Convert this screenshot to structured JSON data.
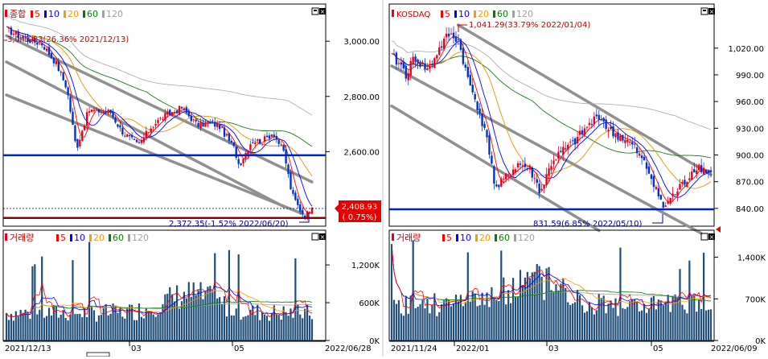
{
  "theme": {
    "background": "#ffffff",
    "frame": "#000000",
    "up_color": "#e8001c",
    "down_color": "#0033cc",
    "volume_color": "#1f4e79",
    "support_line": "#0022cc",
    "alert_line": "#8b0000",
    "channel_line": "#909090",
    "label_badge": "#e60000"
  },
  "legend_items": [
    {
      "label": "5",
      "color": "#ff0000"
    },
    {
      "label": "10",
      "color": "#0000ff"
    },
    {
      "label": "20",
      "color": "#ff9900"
    },
    {
      "label": "60",
      "color": "#008000"
    },
    {
      "label": "120",
      "color": "#a0a0a0"
    }
  ],
  "panels": {
    "left": {
      "title": "종합",
      "volume_title": "거래량",
      "price_ticks": [
        "3,000.00",
        "2,800.00",
        "2,600.00"
      ],
      "volume_ticks": [
        "1,200K",
        "600K",
        "0K"
      ],
      "date_labels": [
        "2021/12/13",
        "03",
        "05",
        "2022/06/28"
      ],
      "high_annotation": "3,043.83(26.36% 2021/12/13)",
      "low_annotation": "2,372.35(-1.52% 2022/06/20)",
      "current_price": "2,408.93",
      "current_change": "( 0.75%)"
    },
    "right": {
      "title": "KOSDAQ",
      "volume_title": "거래량",
      "price_ticks": [
        "1,020.00",
        "990.00",
        "960.00",
        "930.00",
        "900.00",
        "870.00",
        "840.00"
      ],
      "volume_ticks": [
        "1,400K",
        "700K",
        "0K"
      ],
      "date_labels": [
        "2021/11/24",
        "2022/01",
        "03",
        "05",
        "2022/06/09"
      ],
      "high_annotation": "1,041.29(33.79% 2022/01/04)",
      "low_annotation": "831.59(6.85% 2022/05/10)"
    }
  },
  "chart_data": [
    {
      "type": "candlestick",
      "title": "종합",
      "x_range": [
        "2021/12/13",
        "2022/06/28"
      ],
      "ylim": [
        2330,
        3120
      ],
      "y_ticks": [
        2600,
        2800,
        3000
      ],
      "series_legend": [
        "5",
        "10",
        "20",
        "60",
        "120"
      ],
      "close_path": [
        [
          "2021/12/13",
          3043
        ],
        [
          "2021/12/24",
          3010
        ],
        [
          "2022/01/05",
          2990
        ],
        [
          "2022/01/14",
          2920
        ],
        [
          "2022/01/21",
          2830
        ],
        [
          "2022/01/27",
          2610
        ],
        [
          "2022/02/04",
          2750
        ],
        [
          "2022/02/11",
          2747
        ],
        [
          "2022/02/18",
          2744
        ],
        [
          "2022/02/25",
          2676
        ],
        [
          "2022/03/08",
          2622
        ],
        [
          "2022/03/17",
          2695
        ],
        [
          "2022/03/25",
          2729
        ],
        [
          "2022/04/05",
          2759
        ],
        [
          "2022/04/15",
          2696
        ],
        [
          "2022/04/22",
          2704
        ],
        [
          "2022/04/29",
          2695
        ],
        [
          "2022/05/09",
          2610
        ],
        [
          "2022/05/12",
          2550
        ],
        [
          "2022/05/20",
          2639
        ],
        [
          "2022/05/27",
          2638
        ],
        [
          "2022/06/03",
          2670
        ],
        [
          "2022/06/10",
          2595
        ],
        [
          "2022/06/15",
          2447
        ],
        [
          "2022/06/20",
          2391
        ],
        [
          "2022/06/24",
          2366
        ],
        [
          "2022/06/28",
          2409
        ]
      ],
      "support_level": 2587,
      "alert_level": 2360,
      "high": {
        "value": 3043.83,
        "date": "2021/12/13"
      },
      "low": {
        "value": 2372.35,
        "date": "2022/06/20"
      },
      "last": {
        "value": 2408.93,
        "change_pct": 0.75
      }
    },
    {
      "type": "candlestick",
      "title": "KOSDAQ",
      "x_range": [
        "2021/11/24",
        "2022/06/09"
      ],
      "ylim": [
        820,
        1065
      ],
      "y_ticks": [
        840,
        870,
        900,
        930,
        960,
        990,
        1020
      ],
      "series_legend": [
        "5",
        "10",
        "20",
        "60",
        "120"
      ],
      "close_path": [
        [
          "2021/11/24",
          1010
        ],
        [
          "2021/11/30",
          1000
        ],
        [
          "2021/12/03",
          990
        ],
        [
          "2021/12/08",
          1010
        ],
        [
          "2021/12/13",
          1000
        ],
        [
          "2021/12/17",
          995
        ],
        [
          "2021/12/22",
          1015
        ],
        [
          "2021/12/29",
          1035
        ],
        [
          "2022/01/04",
          1030
        ],
        [
          "2022/01/10",
          985
        ],
        [
          "2022/01/17",
          950
        ],
        [
          "2022/01/24",
          900
        ],
        [
          "2022/01/27",
          860
        ],
        [
          "2022/02/04",
          878
        ],
        [
          "2022/02/10",
          890
        ],
        [
          "2022/02/17",
          885
        ],
        [
          "2022/02/24",
          858
        ],
        [
          "2022/03/03",
          893
        ],
        [
          "2022/03/10",
          905
        ],
        [
          "2022/03/17",
          915
        ],
        [
          "2022/03/24",
          930
        ],
        [
          "2022/04/01",
          945
        ],
        [
          "2022/04/08",
          925
        ],
        [
          "2022/04/15",
          920
        ],
        [
          "2022/04/22",
          910
        ],
        [
          "2022/04/29",
          890
        ],
        [
          "2022/05/06",
          865
        ],
        [
          "2022/05/10",
          840
        ],
        [
          "2022/05/17",
          855
        ],
        [
          "2022/05/24",
          870
        ],
        [
          "2022/05/31",
          888
        ],
        [
          "2022/06/09",
          880
        ]
      ],
      "support_level": 839,
      "high": {
        "value": 1041.29,
        "date": "2022/01/04"
      },
      "low": {
        "value": 831.59,
        "date": "2022/05/10"
      }
    },
    {
      "type": "bar",
      "title": "거래량",
      "x_range": [
        "2021/12/13",
        "2022/06/28"
      ],
      "ylim": [
        0,
        1700
      ],
      "y_ticks": [
        0,
        600,
        1200
      ],
      "unit": "K",
      "typical_level": 650,
      "peak": 1600
    },
    {
      "type": "bar",
      "title": "거래량",
      "x_range": [
        "2021/11/24",
        "2022/06/09"
      ],
      "ylim": [
        0,
        1800
      ],
      "y_ticks": [
        0,
        700,
        1400
      ],
      "unit": "K",
      "typical_level": 900,
      "peak": 1700
    }
  ]
}
